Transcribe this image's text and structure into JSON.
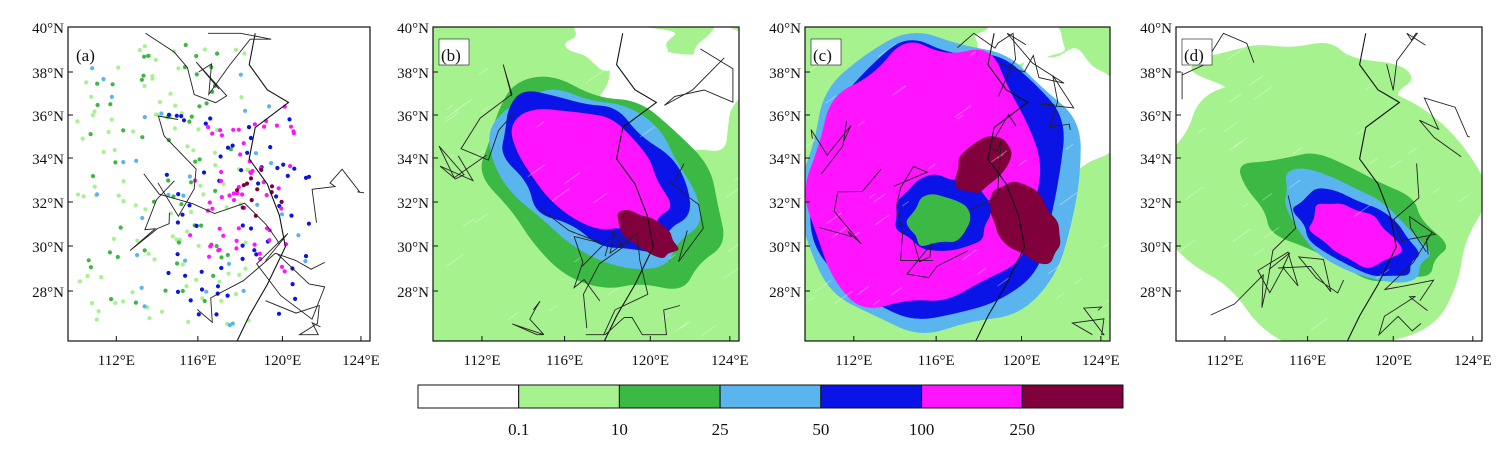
{
  "panels": [
    {
      "id": "a",
      "label": "(a)",
      "type": "stations"
    },
    {
      "id": "b",
      "label": "(b)",
      "type": "field"
    },
    {
      "id": "c",
      "label": "(c)",
      "type": "field"
    },
    {
      "id": "d",
      "label": "(d)",
      "type": "field"
    }
  ],
  "lat_ticks": [
    "40°N",
    "38°N",
    "36°N",
    "34°N",
    "32°N",
    "30°N",
    "28°N"
  ],
  "lon_ticks": [
    "112°E",
    "116°E",
    "120°E",
    "124°E"
  ],
  "colorbar": {
    "colors": [
      "#ffffff",
      "#a6f28e",
      "#3cb844",
      "#5ab4ee",
      "#0a14e6",
      "#ff14ff",
      "#80003c"
    ],
    "labels": [
      "0.1",
      "10",
      "25",
      "50",
      "100",
      "250"
    ]
  },
  "colors": {
    "land_border": "#111111",
    "stations": [
      "#a6f28e",
      "#3cb844",
      "#5ab4ee",
      "#0a14e6",
      "#ff14ff",
      "#80003c"
    ]
  }
}
